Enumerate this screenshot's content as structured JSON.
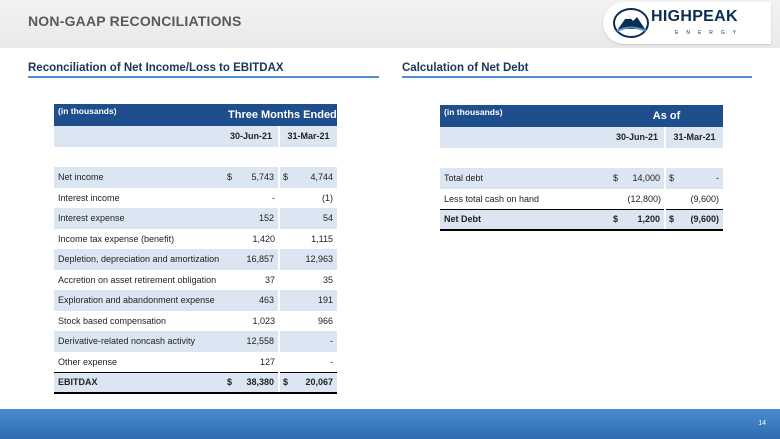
{
  "slide_title": "NON-GAAP RECONCILIATIONS",
  "logo": {
    "word": "HIGHPEAK",
    "sub": "ENERGY"
  },
  "left": {
    "section_title": "Reconciliation of Net Income/Loss to EBITDAX",
    "unit_label": "(in thousands)",
    "span_header": "Three Months Ended",
    "col1": "30-Jun-21",
    "col2": "31-Mar-21",
    "rows": [
      {
        "label": "Net income",
        "c1_cur": "$",
        "c1": "5,743",
        "c2_cur": "$",
        "c2": "4,744"
      },
      {
        "label": "Interest income",
        "c1_cur": "",
        "c1": "-",
        "c2_cur": "",
        "c2": "(1)"
      },
      {
        "label": "Interest expense",
        "c1_cur": "",
        "c1": "152",
        "c2_cur": "",
        "c2": "54"
      },
      {
        "label": "Income tax expense (benefit)",
        "c1_cur": "",
        "c1": "1,420",
        "c2_cur": "",
        "c2": "1,115"
      },
      {
        "label": "Depletion, depreciation and amortization",
        "c1_cur": "",
        "c1": "16,857",
        "c2_cur": "",
        "c2": "12,963"
      },
      {
        "label": "Accretion on asset retirement obligation",
        "c1_cur": "",
        "c1": "37",
        "c2_cur": "",
        "c2": "35"
      },
      {
        "label": "Exploration and abandonment expense",
        "c1_cur": "",
        "c1": "463",
        "c2_cur": "",
        "c2": "191"
      },
      {
        "label": "Stock based compensation",
        "c1_cur": "",
        "c1": "1,023",
        "c2_cur": "",
        "c2": "966"
      },
      {
        "label": "Derivative-related noncash activity",
        "c1_cur": "",
        "c1": "12,558",
        "c2_cur": "",
        "c2": "-"
      },
      {
        "label": "Other expense",
        "c1_cur": "",
        "c1": "127",
        "c2_cur": "",
        "c2": "-"
      }
    ],
    "total": {
      "label": "EBITDAX",
      "c1_cur": "$",
      "c1": "38,380",
      "c2_cur": "$",
      "c2": "20,067"
    }
  },
  "right": {
    "section_title": "Calculation of Net Debt",
    "unit_label": "(in thousands)",
    "span_header": "As of",
    "col1": "30-Jun-21",
    "col2": "31-Mar-21",
    "rows": [
      {
        "label": "Total debt",
        "c1_cur": "$",
        "c1": "14,000",
        "c2_cur": "$",
        "c2": "-"
      },
      {
        "label": "Less total cash on hand",
        "c1_cur": "",
        "c1": "(12,800)",
        "c2_cur": "",
        "c2": "(9,600)"
      }
    ],
    "total": {
      "label": "Net Debt",
      "c1_cur": "$",
      "c1": "1,200",
      "c2_cur": "$",
      "c2": "(9,600)"
    }
  },
  "page_number": "14",
  "colors": {
    "accent_blue": "#1f4e8c",
    "row_shade": "#dce6f2",
    "rule_blue": "#4f8fcf",
    "footer_blue": "#2f6db0"
  }
}
